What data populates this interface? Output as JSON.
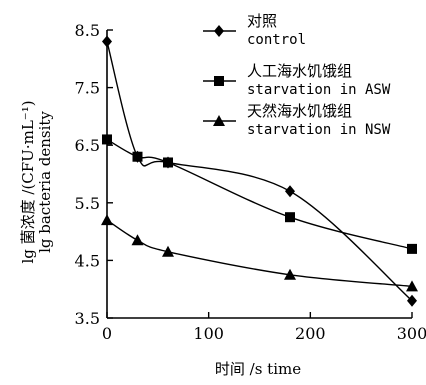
{
  "chart_data": {
    "type": "line",
    "x_ticks": [
      0,
      100,
      200,
      300
    ],
    "y_ticks": [
      "3.5",
      "4.5",
      "5.5",
      "6.5",
      "7.5",
      "8.5"
    ],
    "xlim": [
      0,
      300
    ],
    "ylim": [
      3.5,
      8.5
    ],
    "xlabel": "时间 /s time",
    "ylabel_line1": "lg 菌浓度 /(CFU·mL⁻¹)",
    "ylabel_line2": "lg bacteria density",
    "grid": false,
    "legend_position": "top-right",
    "series": [
      {
        "name": "对照",
        "name_en": "control",
        "marker": "diamond",
        "x": [
          0,
          30,
          60,
          180,
          300
        ],
        "y": [
          8.3,
          6.3,
          6.2,
          5.7,
          3.8
        ]
      },
      {
        "name": "人工海水饥饿组",
        "name_en": "starvation in ASW",
        "marker": "square",
        "x": [
          0,
          30,
          60,
          180,
          300
        ],
        "y": [
          6.6,
          6.3,
          6.2,
          5.25,
          4.7
        ]
      },
      {
        "name": "天然海水饥饿组",
        "name_en": "starvation in NSW",
        "marker": "triangle",
        "x": [
          0,
          30,
          60,
          180,
          300
        ],
        "y": [
          5.2,
          4.85,
          4.65,
          4.25,
          4.05
        ]
      }
    ]
  }
}
